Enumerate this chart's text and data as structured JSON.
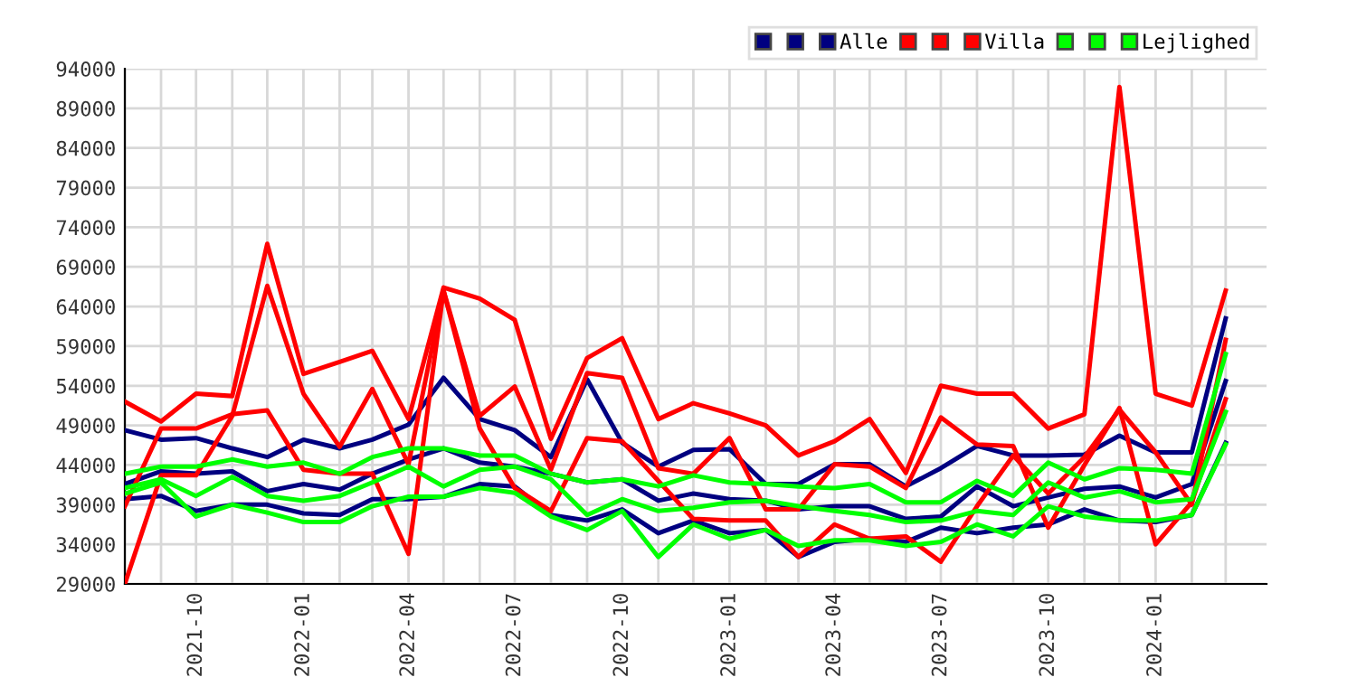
{
  "chart_data": {
    "type": "line",
    "x": [
      "2021-08",
      "2021-09",
      "2021-10",
      "2021-11",
      "2021-12",
      "2022-01",
      "2022-02",
      "2022-03",
      "2022-04",
      "2022-05",
      "2022-06",
      "2022-07",
      "2022-08",
      "2022-09",
      "2022-10",
      "2022-11",
      "2022-12",
      "2023-01",
      "2023-02",
      "2023-03",
      "2023-04",
      "2023-05",
      "2023-06",
      "2023-07",
      "2023-08",
      "2023-09",
      "2023-10",
      "2023-11",
      "2023-12",
      "2024-01",
      "2024-02",
      "2024-03"
    ],
    "series": [
      {
        "color": "#000080",
        "values": [
          48400,
          47200,
          47400,
          46100,
          45000,
          47200,
          46100,
          47200,
          49100,
          55000,
          49800,
          48400,
          45000,
          54800,
          46800,
          43800,
          45900,
          46000,
          41600,
          41600,
          44100,
          44100,
          41300,
          43600,
          46400,
          45200,
          45200,
          45300,
          47700,
          45600,
          45600,
          62500
        ]
      },
      {
        "color": "#000080",
        "values": [
          41600,
          43200,
          42900,
          43200,
          40700,
          41600,
          40900,
          42900,
          44700,
          46100,
          44300,
          43800,
          42900,
          41800,
          42200,
          39500,
          40400,
          39700,
          39500,
          38400,
          38800,
          38800,
          37200,
          37500,
          41300,
          38800,
          39900,
          41000,
          41300,
          39900,
          41600,
          54600
        ]
      },
      {
        "name": "Alle",
        "color": "#000080",
        "values": [
          39700,
          40100,
          38200,
          39000,
          39000,
          37900,
          37700,
          39700,
          39700,
          40000,
          41600,
          41300,
          37700,
          37000,
          38400,
          35400,
          37000,
          35400,
          35800,
          32400,
          34300,
          34700,
          34300,
          36100,
          35400,
          36100,
          36500,
          38400,
          37000,
          36800,
          37700,
          46800
        ]
      },
      {
        "color": "#ff0000",
        "values": [
          52000,
          49500,
          53000,
          52700,
          71900,
          55500,
          57000,
          58400,
          49800,
          66400,
          65000,
          62300,
          47300,
          57500,
          60000,
          49800,
          51800,
          50500,
          49000,
          45200,
          47000,
          49800,
          43000,
          54000,
          53000,
          53000,
          48600,
          50400,
          91700,
          53000,
          51500,
          66000
        ]
      },
      {
        "color": "#ff0000",
        "values": [
          38800,
          48600,
          48600,
          50400,
          50900,
          43400,
          42900,
          42900,
          32800,
          66000,
          50200,
          53900,
          43400,
          55600,
          55000,
          43600,
          42900,
          47400,
          38400,
          38400,
          44100,
          43800,
          41100,
          50000,
          46600,
          46400,
          36100,
          44000,
          51200,
          34000,
          39300,
          52300
        ]
      },
      {
        "name": "Villa",
        "color": "#ff0000",
        "values": [
          29000,
          42700,
          42700,
          50200,
          66600,
          53000,
          46300,
          53600,
          44100,
          66000,
          48600,
          41100,
          38200,
          47400,
          47000,
          42000,
          37200,
          37000,
          37000,
          32400,
          36500,
          34700,
          35000,
          31800,
          38800,
          45200,
          40400,
          45000,
          51000,
          45600,
          39000,
          59800
        ]
      },
      {
        "color": "#00ff00",
        "values": [
          42900,
          43800,
          43800,
          44700,
          43800,
          44300,
          42900,
          45000,
          46100,
          46100,
          45200,
          45200,
          42900,
          41800,
          42200,
          41300,
          42700,
          41800,
          41600,
          41300,
          41100,
          41600,
          39300,
          39300,
          42000,
          40100,
          44300,
          42200,
          43600,
          43400,
          42900,
          58000
        ]
      },
      {
        "color": "#00ff00",
        "values": [
          41100,
          42200,
          40100,
          42500,
          40100,
          39500,
          40100,
          41800,
          43800,
          41300,
          43400,
          43800,
          42200,
          37700,
          39700,
          38200,
          38600,
          39300,
          39500,
          38800,
          38200,
          37700,
          36800,
          37000,
          38200,
          37700,
          41800,
          39900,
          40700,
          39300,
          39700,
          50700
        ]
      },
      {
        "name": "Lejlighed",
        "color": "#00ff00",
        "values": [
          40400,
          41800,
          37500,
          39000,
          38000,
          36800,
          36800,
          38800,
          40000,
          40000,
          41100,
          40500,
          37500,
          35800,
          38200,
          32400,
          36500,
          34700,
          35800,
          33800,
          34500,
          34500,
          33800,
          34300,
          36500,
          35000,
          38800,
          37500,
          37000,
          37000,
          37700,
          46600
        ]
      }
    ],
    "xlim": [
      "2021-08-01",
      "2024-04-05"
    ],
    "xticks": [
      {
        "value": "2021-10",
        "label": "2021-10"
      },
      {
        "value": "2022-01",
        "label": "2022-01"
      },
      {
        "value": "2022-04",
        "label": "2022-04"
      },
      {
        "value": "2022-07",
        "label": "2022-07"
      },
      {
        "value": "2022-10",
        "label": "2022-10"
      },
      {
        "value": "2023-01",
        "label": "2023-01"
      },
      {
        "value": "2023-04",
        "label": "2023-04"
      },
      {
        "value": "2023-07",
        "label": "2023-07"
      },
      {
        "value": "2023-10",
        "label": "2023-10"
      },
      {
        "value": "2024-01",
        "label": "2024-01"
      }
    ],
    "ylim": [
      29000,
      94000
    ],
    "yticks": [
      29000,
      34000,
      39000,
      44000,
      49000,
      54000,
      59000,
      64000,
      69000,
      74000,
      79000,
      84000,
      89000,
      94000
    ],
    "grid": true,
    "legend": "top right",
    "marker": "none",
    "line_style": "solid"
  }
}
